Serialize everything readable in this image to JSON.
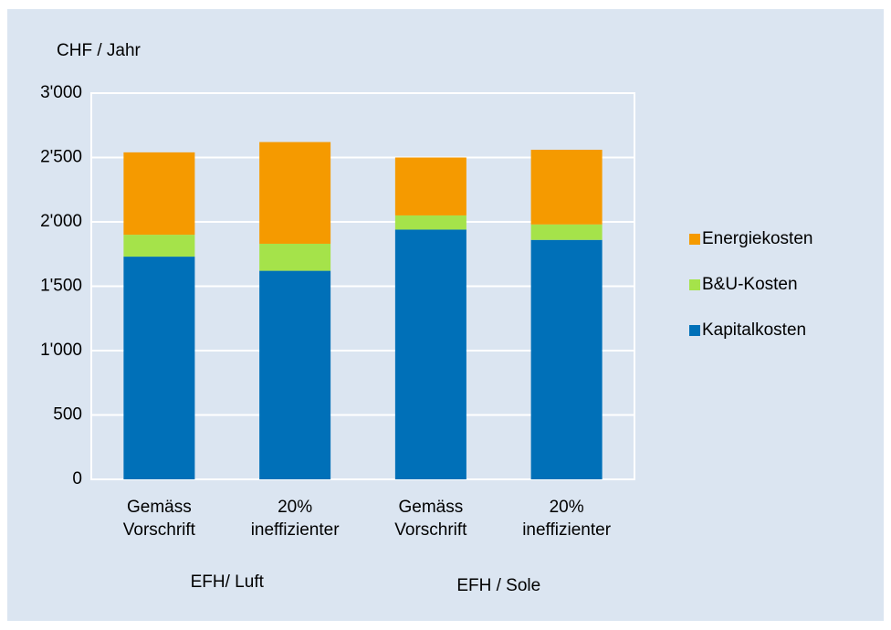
{
  "chart_data": {
    "type": "stacked_bar",
    "y_label": "CHF / Jahr",
    "categories": [
      [
        "Gemäss",
        "Vorschrift"
      ],
      [
        "20%",
        "ineffizienter"
      ],
      [
        "Gemäss",
        "Vorschrift"
      ],
      [
        "20%",
        "ineffizienter"
      ]
    ],
    "groups": [
      "EFH/ Luft",
      "EFH / Sole"
    ],
    "series": [
      {
        "name": "Kapitalkosten",
        "color": "#0070b8",
        "values": [
          1730,
          1620,
          1940,
          1860
        ]
      },
      {
        "name": "B&U-Kosten",
        "color": "#a5e34a",
        "values": [
          170,
          210,
          110,
          120
        ]
      },
      {
        "name": "Energiekosten",
        "color": "#f59a00",
        "values": [
          640,
          790,
          450,
          580
        ]
      }
    ],
    "ylim": [
      0,
      3000
    ],
    "yticks": [
      0,
      500,
      {
        "value": 1000,
        "label": "1'000"
      },
      {
        "value": 1500,
        "label": "1'500"
      },
      {
        "value": 2000,
        "label": "2'000"
      },
      {
        "value": 2500,
        "label": "2'500"
      },
      {
        "value": 3000,
        "label": "3'000"
      }
    ],
    "grid": true,
    "legend": "right"
  }
}
